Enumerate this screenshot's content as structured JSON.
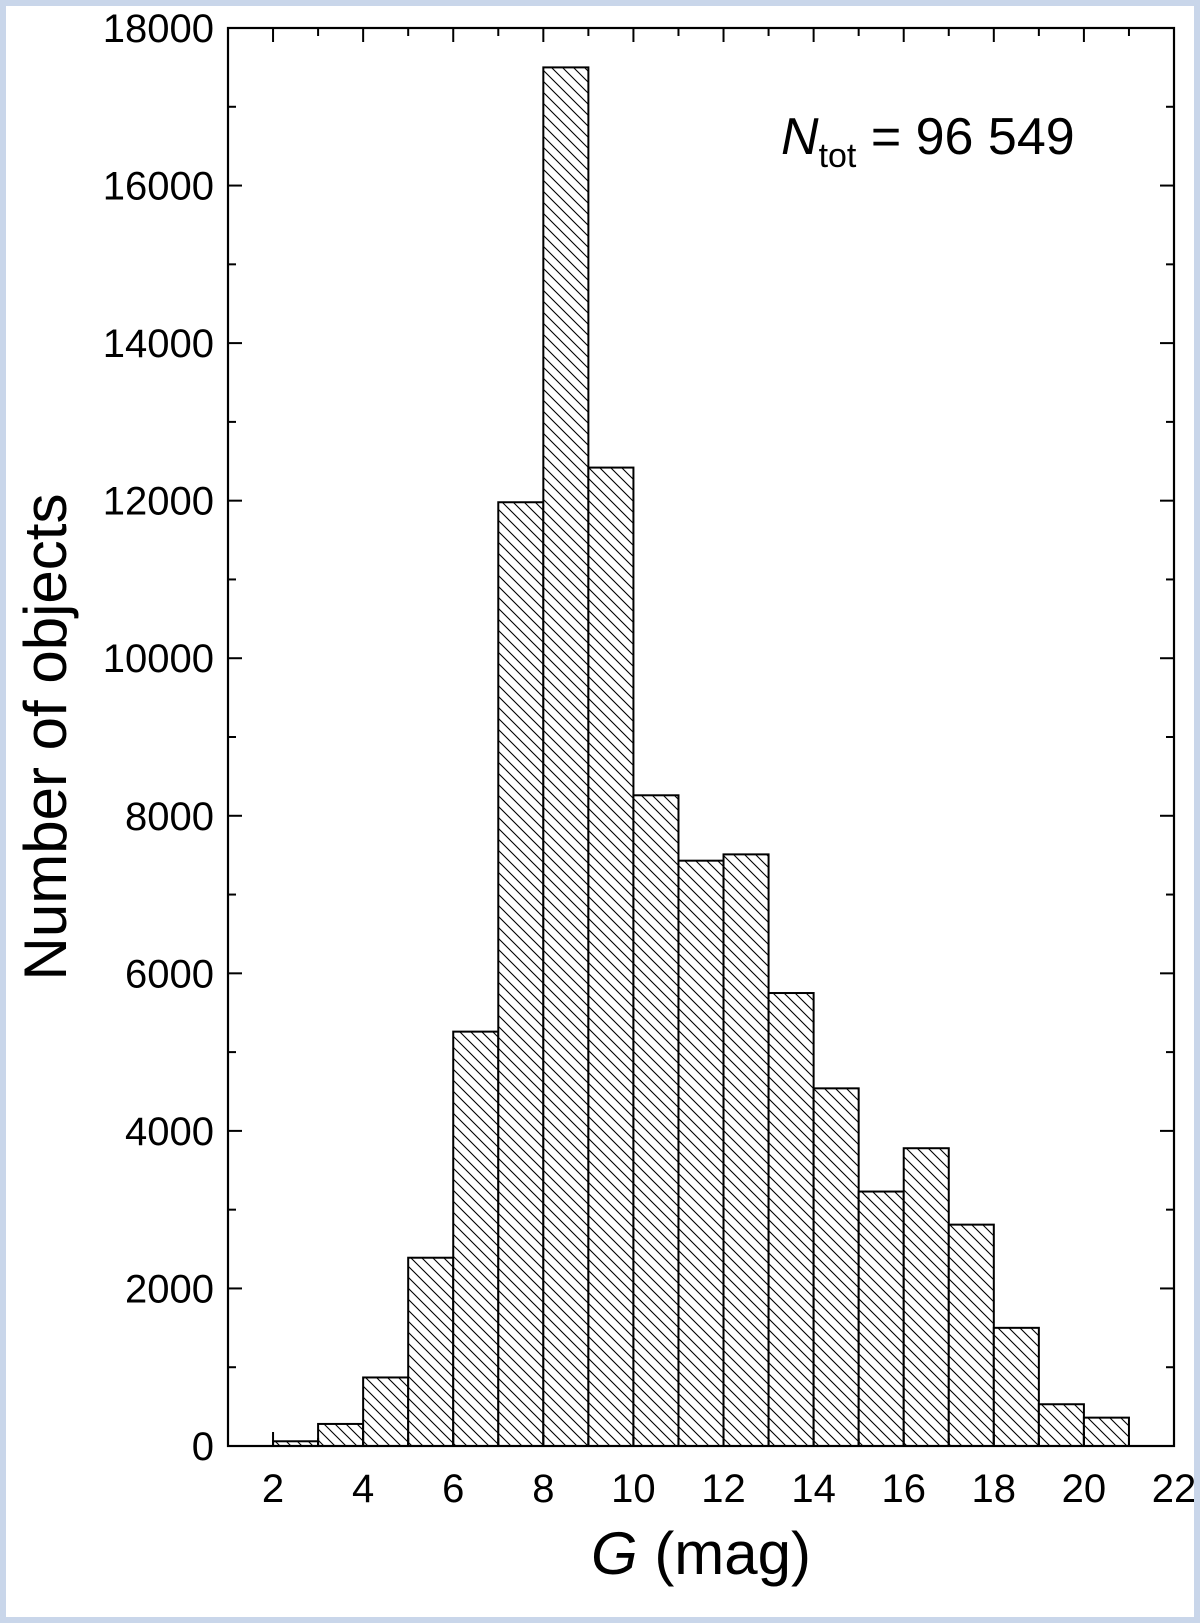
{
  "chart_data": {
    "type": "bar",
    "bin_edges": [
      2,
      3,
      4,
      5,
      6,
      7,
      8,
      9,
      10,
      11,
      12,
      13,
      14,
      15,
      16,
      17,
      18,
      19,
      20,
      21
    ],
    "values": [
      60,
      280,
      870,
      2390,
      5260,
      11980,
      17500,
      12420,
      8260,
      7430,
      7510,
      5750,
      4540,
      3230,
      3780,
      2810,
      1500,
      530,
      360
    ],
    "xlabel_italic": "G",
    "xlabel_rest": " (mag)",
    "ylabel": "Number of objects",
    "xlim": [
      1,
      22
    ],
    "ylim": [
      0,
      18000
    ],
    "xticks": [
      2,
      4,
      6,
      8,
      10,
      12,
      14,
      16,
      18,
      20,
      22
    ],
    "yticks": [
      0,
      2000,
      4000,
      6000,
      8000,
      10000,
      12000,
      14000,
      16000,
      18000
    ],
    "annotation": {
      "symbol": "N",
      "subscript": "tot",
      "text": " = 96 549"
    },
    "fill": "diagonal-hatch",
    "grid": false,
    "legend": "none"
  },
  "colors": {
    "frame": "#c9d6ea",
    "background": "#ffffff",
    "ink": "#000000"
  }
}
